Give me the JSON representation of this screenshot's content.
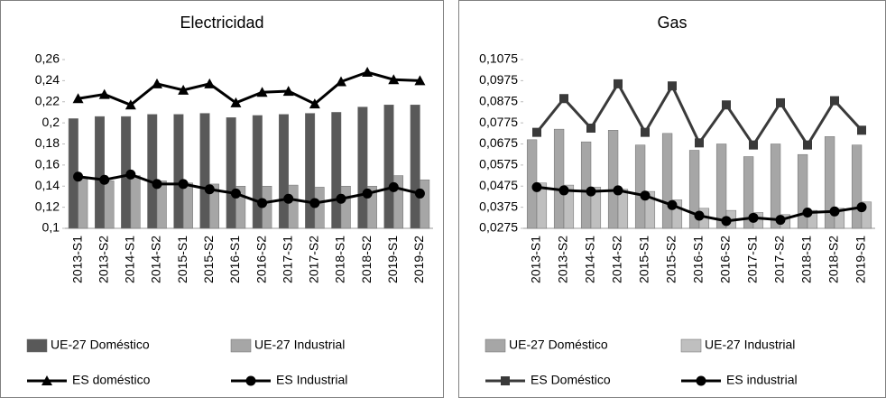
{
  "chart_data": [
    {
      "type": "bar_line",
      "title": "Electricidad",
      "categories": [
        "2013-S1",
        "2013-S2",
        "2014-S1",
        "2014-S2",
        "2015-S1",
        "2015-S2",
        "2016-S1",
        "2016-S2",
        "2017-S1",
        "2017-S2",
        "2018-S1",
        "2018-S2",
        "2019-S1",
        "2019-S2"
      ],
      "ylim": [
        0.1,
        0.26
      ],
      "yticks": [
        {
          "value": 0.1,
          "label": "0,1"
        },
        {
          "value": 0.12,
          "label": "0,12"
        },
        {
          "value": 0.14,
          "label": "0,14"
        },
        {
          "value": 0.16,
          "label": "0,16"
        },
        {
          "value": 0.18,
          "label": "0,18"
        },
        {
          "value": 0.2,
          "label": "0,2"
        },
        {
          "value": 0.22,
          "label": "0,22"
        },
        {
          "value": 0.24,
          "label": "0,24"
        },
        {
          "value": 0.26,
          "label": "0,26"
        }
      ],
      "series": [
        {
          "name": "UE-27 Doméstico",
          "type": "bar",
          "color": "#595959",
          "values": [
            0.204,
            0.206,
            0.206,
            0.208,
            0.208,
            0.209,
            0.205,
            0.207,
            0.208,
            0.209,
            0.21,
            0.215,
            0.217,
            0.217
          ]
        },
        {
          "name": "UE-27 Industrial",
          "type": "bar",
          "color": "#a6a6a6",
          "values": [
            0.148,
            0.145,
            0.15,
            0.145,
            0.143,
            0.142,
            0.14,
            0.14,
            0.141,
            0.139,
            0.14,
            0.14,
            0.15,
            0.146
          ]
        },
        {
          "name": "ES doméstico",
          "type": "line",
          "marker": "triangle",
          "color": "#000000",
          "values": [
            0.223,
            0.227,
            0.217,
            0.237,
            0.231,
            0.237,
            0.219,
            0.229,
            0.23,
            0.218,
            0.239,
            0.248,
            0.241,
            0.24
          ]
        },
        {
          "name": "ES Industrial",
          "type": "line",
          "marker": "circle",
          "color": "#000000",
          "values": [
            0.149,
            0.146,
            0.151,
            0.142,
            0.142,
            0.137,
            0.133,
            0.124,
            0.128,
            0.124,
            0.128,
            0.133,
            0.139,
            0.133
          ]
        }
      ]
    },
    {
      "type": "bar_line",
      "title": "Gas",
      "categories": [
        "2013-S1",
        "2013-S2",
        "2014-S1",
        "2014-S2",
        "2015-S1",
        "2015-S2",
        "2016-S1",
        "2016-S2",
        "2017-S1",
        "2017-S2",
        "2018-S1",
        "2018-S2",
        "2019-S1"
      ],
      "ylim": [
        0.0275,
        0.1075
      ],
      "yticks": [
        {
          "value": 0.0275,
          "label": "0,0275"
        },
        {
          "value": 0.0375,
          "label": "0,0375"
        },
        {
          "value": 0.0475,
          "label": "0,0475"
        },
        {
          "value": 0.0575,
          "label": "0,0575"
        },
        {
          "value": 0.0675,
          "label": "0,0675"
        },
        {
          "value": 0.0775,
          "label": "0,0775"
        },
        {
          "value": 0.0875,
          "label": "0,0875"
        },
        {
          "value": 0.0975,
          "label": "0,0975"
        },
        {
          "value": 0.1075,
          "label": "0,1075"
        }
      ],
      "series": [
        {
          "name": "UE-27 Doméstico",
          "type": "bar",
          "color": "#a6a6a6",
          "values": [
            0.0695,
            0.0745,
            0.0685,
            0.074,
            0.067,
            0.0725,
            0.0645,
            0.0675,
            0.0615,
            0.0675,
            0.0625,
            0.071,
            0.067
          ]
        },
        {
          "name": "UE-27 Industrial",
          "type": "bar",
          "color": "#bfbfbf",
          "values": [
            0.049,
            0.048,
            0.047,
            0.046,
            0.045,
            0.041,
            0.037,
            0.036,
            0.035,
            0.034,
            0.036,
            0.037,
            0.04
          ]
        },
        {
          "name": "ES Doméstico",
          "type": "line",
          "marker": "square",
          "color": "#3a3a3a",
          "values": [
            0.073,
            0.089,
            0.075,
            0.096,
            0.073,
            0.095,
            0.068,
            0.086,
            0.067,
            0.087,
            0.067,
            0.088,
            0.074
          ]
        },
        {
          "name": "ES industrial",
          "type": "line",
          "marker": "circle",
          "color": "#000000",
          "values": [
            0.047,
            0.0455,
            0.045,
            0.0455,
            0.043,
            0.0385,
            0.0335,
            0.031,
            0.0325,
            0.0315,
            0.035,
            0.0355,
            0.0375
          ]
        }
      ]
    }
  ]
}
